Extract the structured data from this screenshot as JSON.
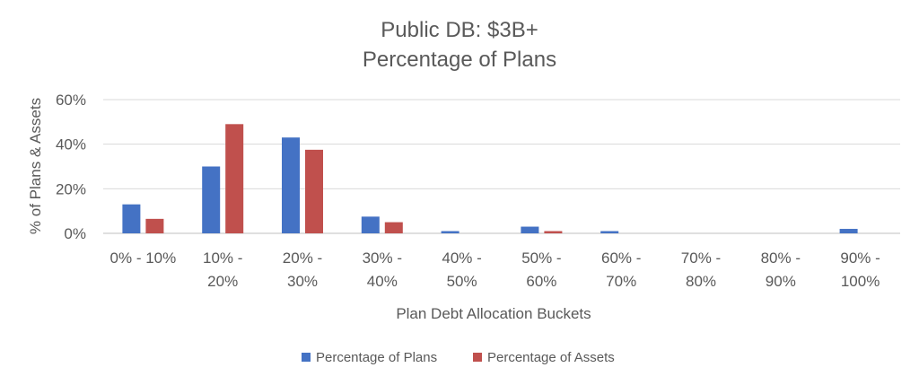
{
  "chart_data": {
    "type": "bar",
    "title": [
      "Public DB: $3B+",
      "Percentage of Plans"
    ],
    "xlabel": "Plan Debt Allocation Buckets",
    "ylabel": "% of Plans & Assets",
    "ylim": [
      0,
      60
    ],
    "yticks": [
      "0%",
      "20%",
      "40%",
      "60%"
    ],
    "ytick_values": [
      0,
      20,
      40,
      60
    ],
    "grid": true,
    "legend_position": "bottom",
    "categories": [
      [
        "0% - 10%"
      ],
      [
        "10% -",
        "20%"
      ],
      [
        "20% -",
        "30%"
      ],
      [
        "30% -",
        "40%"
      ],
      [
        "40% -",
        "50%"
      ],
      [
        "50% -",
        "60%"
      ],
      [
        "60% -",
        "70%"
      ],
      [
        "70% -",
        "80%"
      ],
      [
        "80% -",
        "90%"
      ],
      [
        "90% -",
        "100%"
      ]
    ],
    "series": [
      {
        "name": "Percentage of Plans",
        "color": "#4472c4",
        "values": [
          13,
          30,
          43,
          7.5,
          1,
          3,
          1,
          0,
          0,
          2
        ]
      },
      {
        "name": "Percentage of Assets",
        "color": "#c0504d",
        "values": [
          6.5,
          49,
          37.5,
          5,
          0,
          1,
          0,
          0,
          0,
          0
        ]
      }
    ]
  }
}
